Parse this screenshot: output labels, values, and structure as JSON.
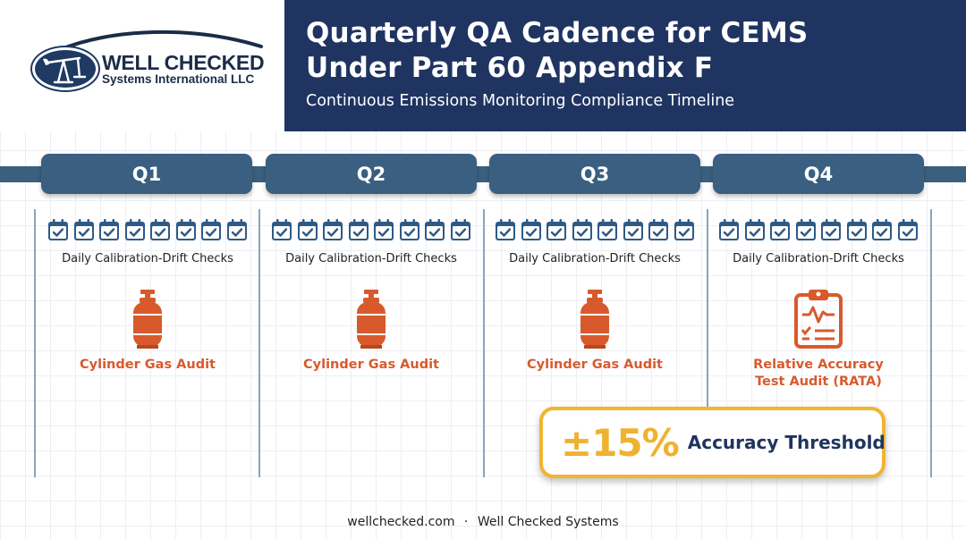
{
  "logo": {
    "name": "WELL CHECKED",
    "sub": "Systems International LLC"
  },
  "header": {
    "title_line1": "Quarterly QA Cadence for CEMS",
    "title_line2": "Under Part 60 Appendix F",
    "subtitle": "Continuous Emissions Monitoring Compliance Timeline"
  },
  "quarters": [
    {
      "label": "Q1",
      "daily": "Daily Calibration-Drift Checks",
      "event_line1": "Cylinder Gas Audit",
      "event_line2": "",
      "event_icon": "gas-cylinder-icon"
    },
    {
      "label": "Q2",
      "daily": "Daily Calibration-Drift Checks",
      "event_line1": "Cylinder Gas Audit",
      "event_line2": "",
      "event_icon": "gas-cylinder-icon"
    },
    {
      "label": "Q3",
      "daily": "Daily Calibration-Drift Checks",
      "event_line1": "Cylinder Gas Audit",
      "event_line2": "",
      "event_icon": "gas-cylinder-icon"
    },
    {
      "label": "Q4",
      "daily": "Daily Calibration-Drift Checks",
      "event_line1": "Relative Accuracy",
      "event_line2": "Test Audit (RATA)",
      "event_icon": "clipboard-checklist-icon"
    }
  ],
  "threshold": {
    "value": "±15%",
    "label": "Accuracy Threshold"
  },
  "footer": {
    "site": "wellchecked.com",
    "sep": "·",
    "company": "Well Checked Systems"
  },
  "colors": {
    "navy": "#1f3461",
    "quarter_pill": "#3a5f80",
    "event_orange": "#d85a2c",
    "calendar_blue": "#2f5a86",
    "threshold_gold": "#efb230"
  }
}
